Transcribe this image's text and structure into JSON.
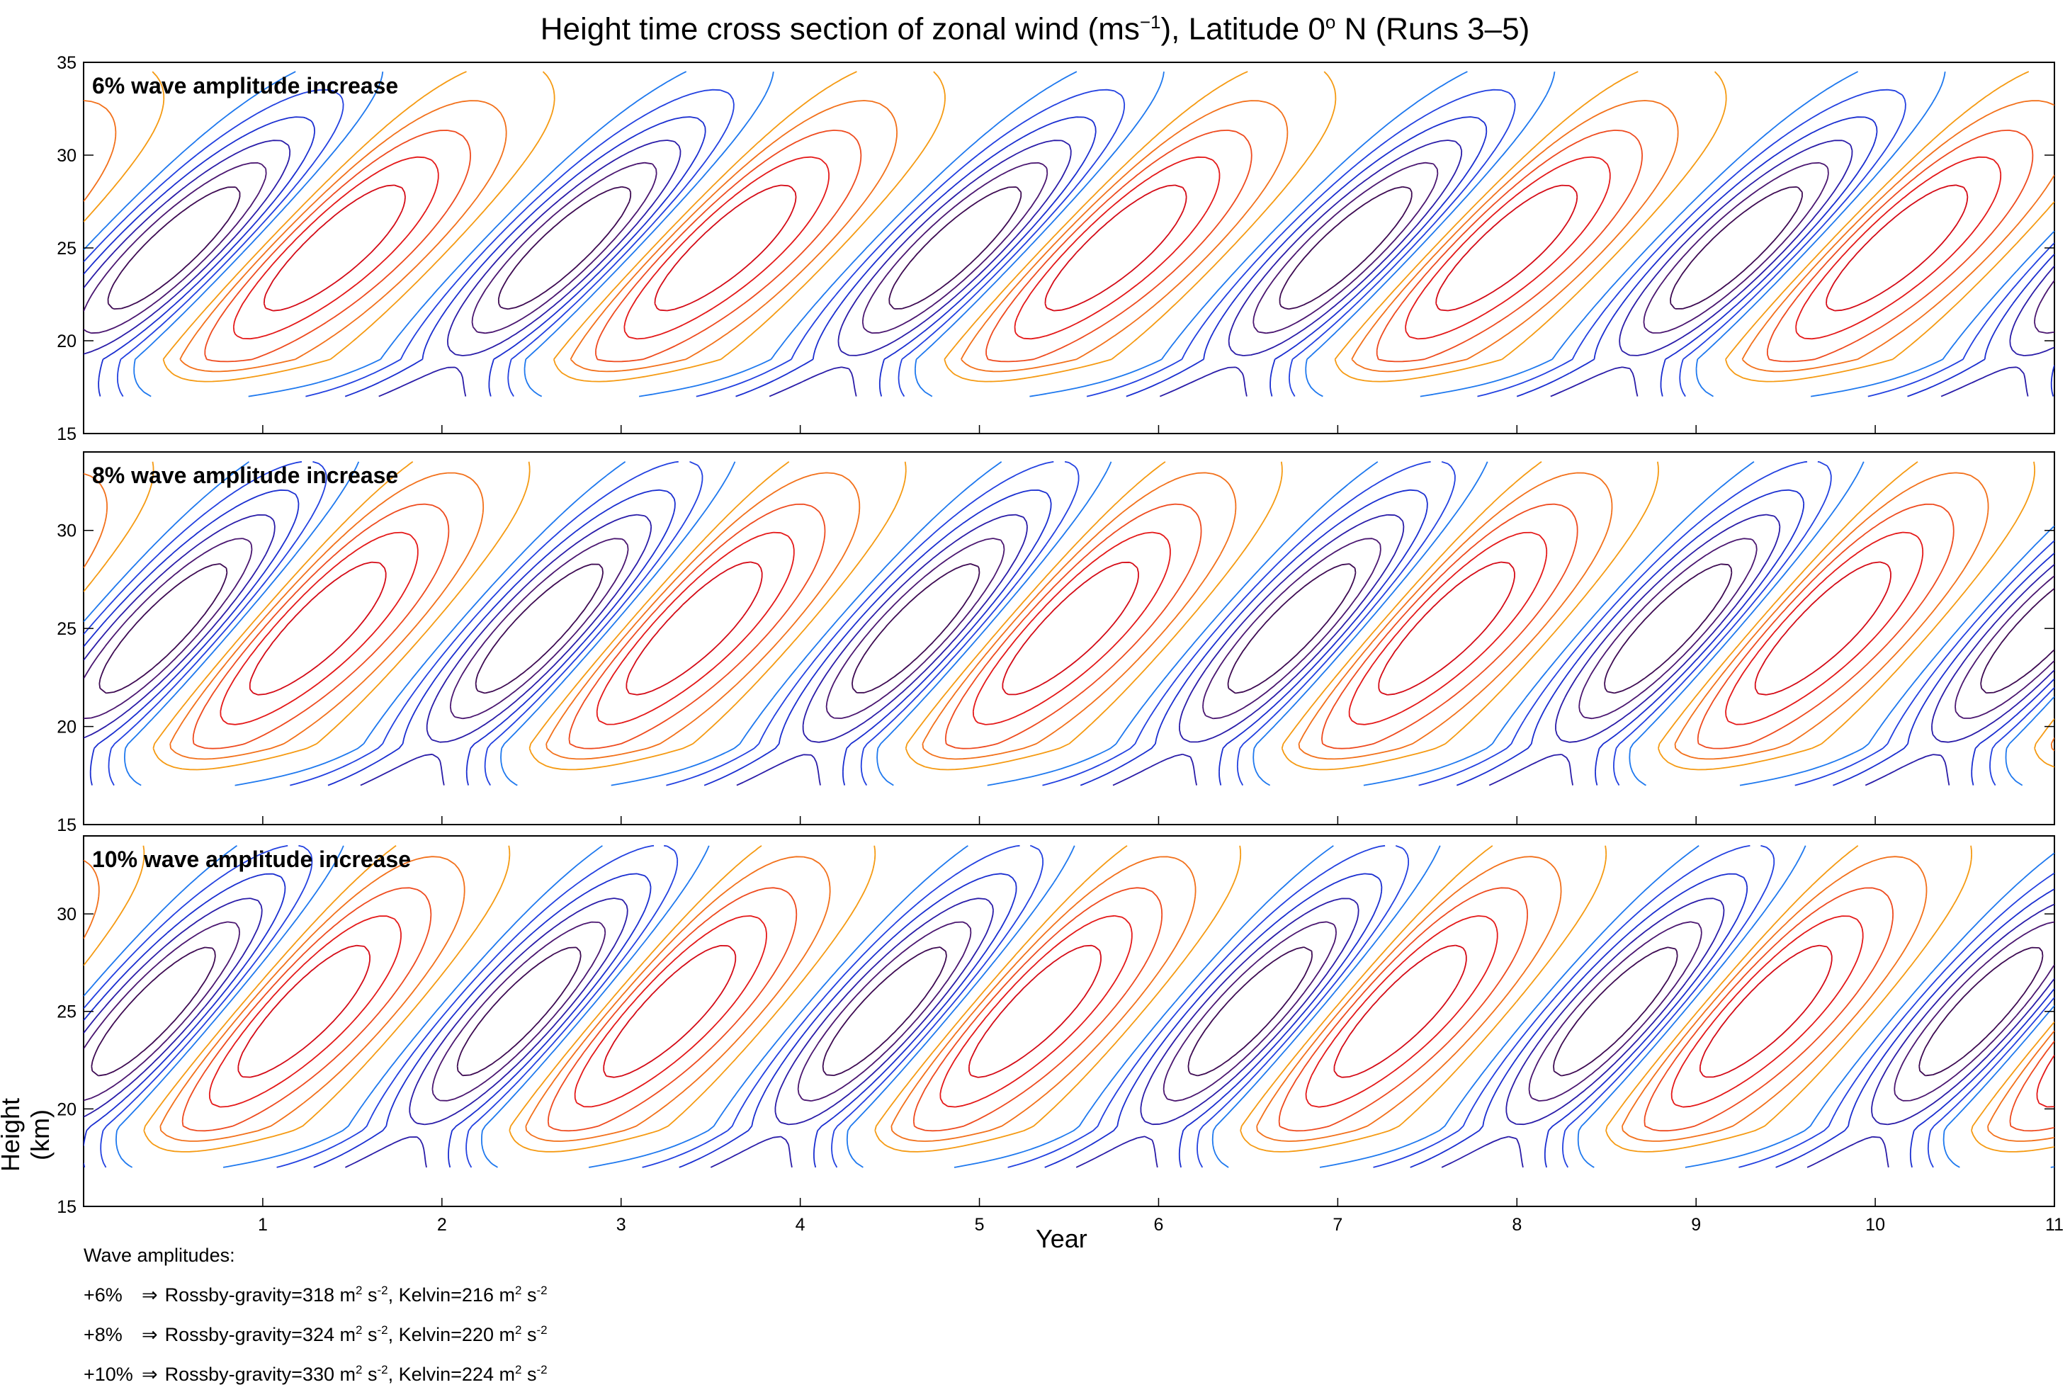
{
  "title": {
    "prefix": "Height time cross section of zonal wind (ms",
    "exp": "−1",
    "suffix": "), Latitude 0",
    "deg": "o",
    "end": " N (Runs 3–5)"
  },
  "chart_data": {
    "type": "contour",
    "xlabel": "Year",
    "ylabel": "Height (km)",
    "xlim": [
      0,
      11
    ],
    "ylim": [
      15,
      35
    ],
    "x_ticks": [
      1,
      2,
      3,
      4,
      5,
      6,
      7,
      8,
      9,
      10,
      11
    ],
    "y_ticks": [
      15,
      20,
      25,
      30,
      35
    ],
    "contour_levels": [
      -30,
      -25,
      -20,
      -15,
      -10,
      -5,
      5,
      10,
      15,
      20,
      25
    ],
    "colors": {
      "-30": "#3d0a52",
      "-25": "#4a1670",
      "-20": "#2a1ca8",
      "-15": "#1a2ed0",
      "-10": "#2240e0",
      "-5": "#1e78ee",
      "5": "#f59a12",
      "10": "#f2701a",
      "15": "#ee4a1e",
      "20": "#e41818",
      "25": "#d40a16"
    },
    "panels": [
      {
        "label": "6% wave amplitude increase",
        "period_years": 2.18,
        "phase": 0.0,
        "top_ylim": 35
      },
      {
        "label": "8% wave amplitude increase",
        "period_years": 2.1,
        "phase": 0.02,
        "top_ylim": 34
      },
      {
        "label": "10% wave amplitude increase",
        "period_years": 2.04,
        "phase": 0.04,
        "top_ylim": 34
      }
    ]
  },
  "notes": {
    "heading": "Wave amplitudes:",
    "rows": [
      {
        "pct": "+6%",
        "rg": "Rossby-gravity=318 m",
        "kelvin": "Kelvin=216 m"
      },
      {
        "pct": "+8%",
        "rg": "Rossby-gravity=324 m",
        "kelvin": "Kelvin=220 m"
      },
      {
        "pct": "+10%",
        "rg": "Rossby-gravity=330 m",
        "kelvin": "Kelvin=224 m"
      }
    ],
    "arrow": "⇒",
    "sq": "2",
    "s": " s",
    "neg2": "-2",
    "comma": ", "
  }
}
